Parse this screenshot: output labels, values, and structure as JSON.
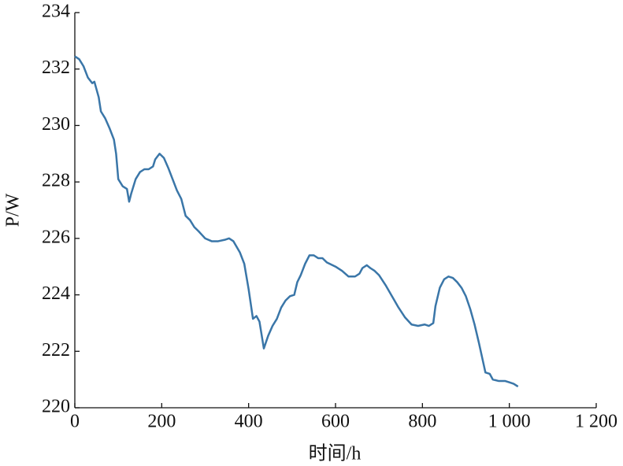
{
  "chart_data": {
    "type": "line",
    "x_label": "时间/h",
    "y_label": "P/W",
    "xlim": [
      0,
      1200
    ],
    "ylim": [
      220,
      234
    ],
    "xticks": [
      0,
      200,
      400,
      600,
      800,
      {
        "value": 1000,
        "label": "1 000"
      },
      {
        "value": 1200,
        "label": "1 200"
      }
    ],
    "yticks": [
      220,
      222,
      224,
      226,
      228,
      230,
      232,
      234
    ],
    "grid": false,
    "series": [
      {
        "color": "#3a76a8",
        "x": [
          0,
          10,
          20,
          30,
          40,
          45,
          55,
          60,
          70,
          80,
          90,
          95,
          100,
          110,
          120,
          125,
          130,
          140,
          150,
          160,
          170,
          180,
          185,
          195,
          205,
          215,
          225,
          235,
          245,
          255,
          265,
          275,
          285,
          300,
          315,
          330,
          345,
          355,
          365,
          380,
          390,
          400,
          410,
          418,
          425,
          435,
          445,
          455,
          465,
          475,
          485,
          495,
          505,
          512,
          520,
          530,
          540,
          550,
          560,
          570,
          580,
          600,
          615,
          630,
          645,
          655,
          662,
          672,
          680,
          690,
          700,
          715,
          730,
          745,
          760,
          775,
          790,
          805,
          815,
          825,
          830,
          840,
          850,
          860,
          870,
          880,
          890,
          900,
          910,
          920,
          930,
          940,
          945,
          955,
          962,
          975,
          990,
          1000,
          1010,
          1020
        ],
        "values": [
          232.45,
          232.35,
          232.1,
          231.7,
          231.5,
          231.55,
          231,
          230.5,
          230.25,
          229.9,
          229.5,
          229,
          228.1,
          227.85,
          227.75,
          227.3,
          227.6,
          228.1,
          228.35,
          228.45,
          228.45,
          228.55,
          228.8,
          229,
          228.85,
          228.5,
          228.1,
          227.7,
          227.4,
          226.8,
          226.65,
          226.4,
          226.25,
          226,
          225.9,
          225.9,
          225.95,
          226,
          225.9,
          225.5,
          225.1,
          224.2,
          223.15,
          223.25,
          223.05,
          222.1,
          222.55,
          222.9,
          223.15,
          223.55,
          223.8,
          223.95,
          224,
          224.45,
          224.7,
          225.1,
          225.4,
          225.4,
          225.3,
          225.3,
          225.15,
          225,
          224.85,
          224.65,
          224.65,
          224.75,
          224.95,
          225.05,
          224.95,
          224.85,
          224.7,
          224.35,
          223.95,
          223.55,
          223.2,
          222.95,
          222.9,
          222.95,
          222.9,
          223,
          223.6,
          224.25,
          224.55,
          224.65,
          224.6,
          224.45,
          224.25,
          223.95,
          223.5,
          222.95,
          222.3,
          221.6,
          221.25,
          221.2,
          221,
          220.95,
          220.95,
          220.9,
          220.85,
          220.75
        ]
      }
    ]
  }
}
